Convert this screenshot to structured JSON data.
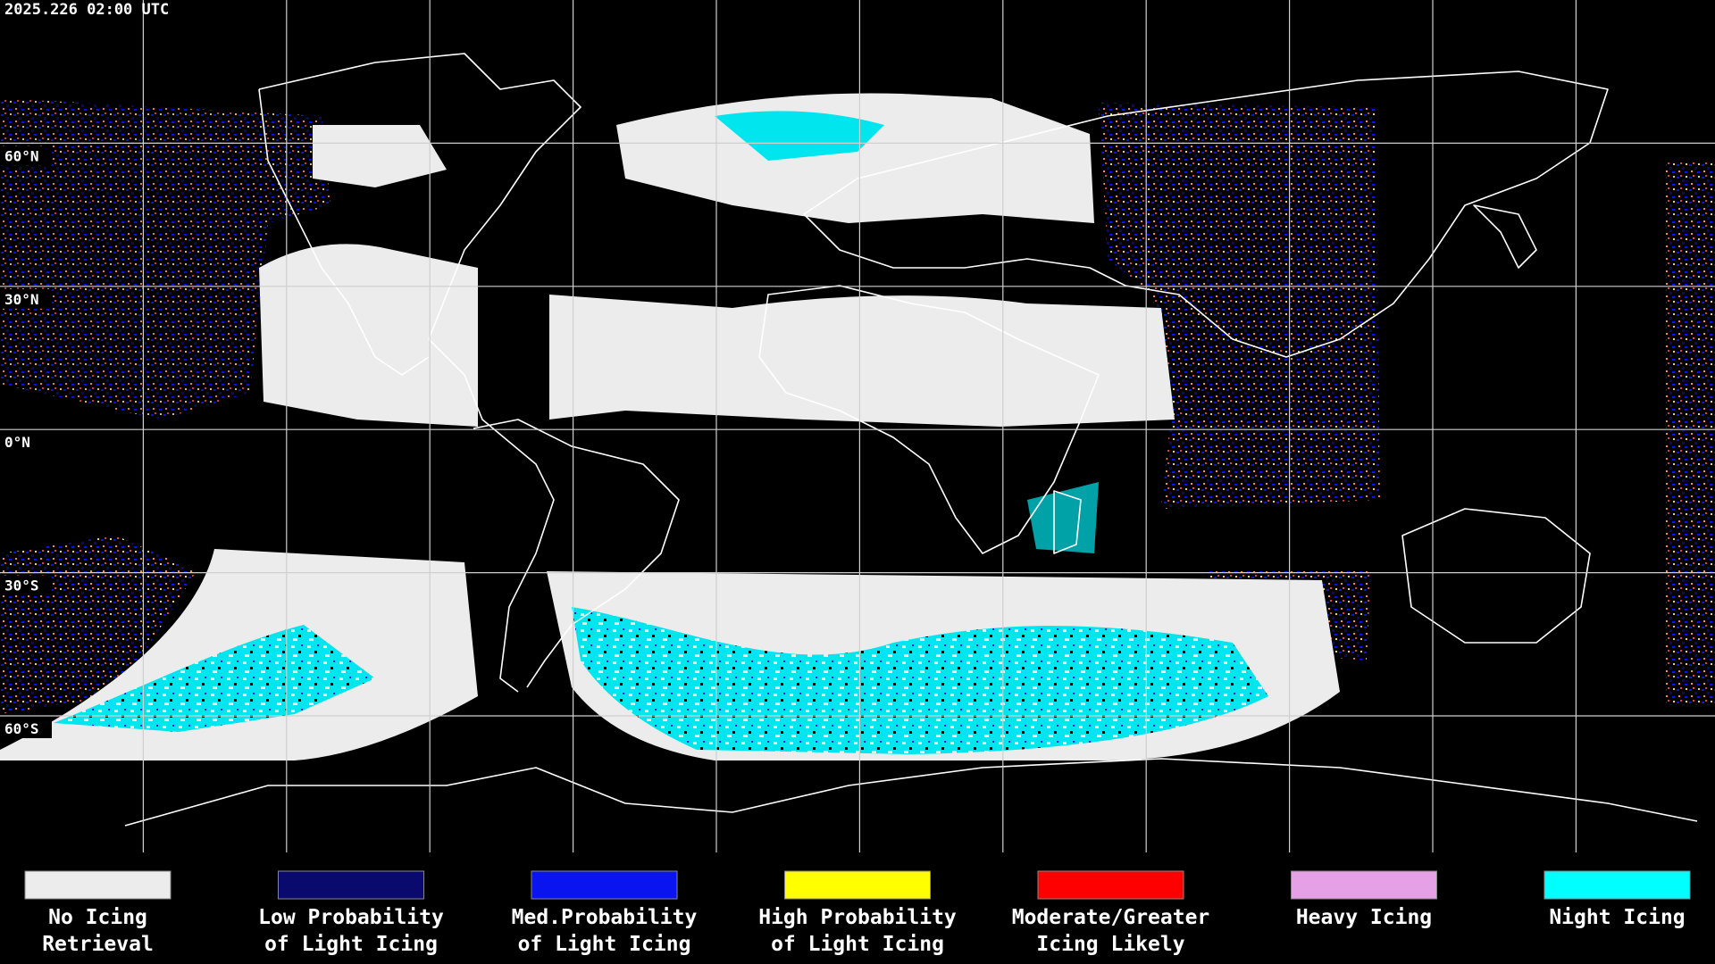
{
  "header": {
    "title": "2025.226 02:00 UTC"
  },
  "map": {
    "latitude_labels": [
      "60°N",
      "30°N",
      "0°N",
      "30°S",
      "60°S"
    ]
  },
  "legend": {
    "items": [
      {
        "label": [
          "No Icing",
          "Retrieval"
        ],
        "color": "#ececec"
      },
      {
        "label": [
          "Low Probability",
          "of Light Icing"
        ],
        "color": "#0a0a6e"
      },
      {
        "label": [
          "Med.Probability",
          "of Light Icing"
        ],
        "color": "#0a14f0"
      },
      {
        "label": [
          "High Probability",
          "of Light Icing"
        ],
        "color": "#ffff00"
      },
      {
        "label": [
          "Moderate/Greater",
          "Icing Likely"
        ],
        "color": "#ff0000"
      },
      {
        "label": [
          "Heavy Icing"
        ],
        "color": "#e6a0e6"
      },
      {
        "label": [
          "Night Icing"
        ],
        "color": "#00ffff"
      }
    ]
  }
}
